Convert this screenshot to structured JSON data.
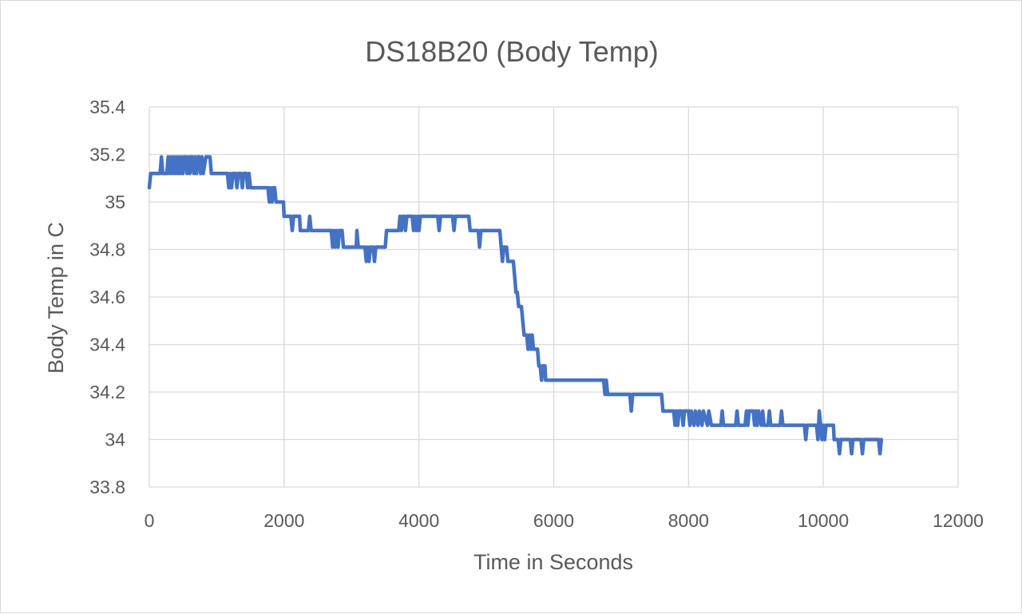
{
  "chart_data": {
    "type": "line",
    "title": "DS18B20 (Body Temp)",
    "xlabel": "Time in Seconds",
    "ylabel": "Body Temp in C",
    "xlim": [
      0,
      12000
    ],
    "ylim": [
      33.8,
      35.4
    ],
    "x_ticks": [
      0,
      2000,
      4000,
      6000,
      8000,
      10000,
      12000
    ],
    "y_ticks": [
      33.8,
      34,
      34.2,
      34.4,
      34.6,
      34.8,
      35,
      35.2,
      35.4
    ],
    "y_tick_labels": [
      "33.8",
      "34",
      "34.2",
      "34.4",
      "34.6",
      "34.8",
      "35",
      "35.2",
      "35.4"
    ],
    "gridlines": "horizontal and vertical",
    "legend": "none",
    "series": [
      {
        "name": "Body Temp",
        "color": "#4472c4",
        "points": [
          [
            0,
            35.06
          ],
          [
            20,
            35.12
          ],
          [
            160,
            35.12
          ],
          [
            180,
            35.19
          ],
          [
            200,
            35.12
          ],
          [
            260,
            35.12
          ],
          [
            280,
            35.19
          ],
          [
            300,
            35.12
          ],
          [
            320,
            35.19
          ],
          [
            340,
            35.12
          ],
          [
            360,
            35.19
          ],
          [
            380,
            35.12
          ],
          [
            400,
            35.19
          ],
          [
            420,
            35.12
          ],
          [
            440,
            35.19
          ],
          [
            460,
            35.12
          ],
          [
            480,
            35.19
          ],
          [
            500,
            35.12
          ],
          [
            520,
            35.19
          ],
          [
            540,
            35.19
          ],
          [
            560,
            35.12
          ],
          [
            580,
            35.19
          ],
          [
            600,
            35.12
          ],
          [
            620,
            35.19
          ],
          [
            640,
            35.19
          ],
          [
            660,
            35.12
          ],
          [
            680,
            35.19
          ],
          [
            700,
            35.12
          ],
          [
            720,
            35.19
          ],
          [
            740,
            35.19
          ],
          [
            760,
            35.12
          ],
          [
            780,
            35.19
          ],
          [
            800,
            35.12
          ],
          [
            840,
            35.19
          ],
          [
            900,
            35.19
          ],
          [
            920,
            35.12
          ],
          [
            1160,
            35.12
          ],
          [
            1180,
            35.06
          ],
          [
            1200,
            35.12
          ],
          [
            1220,
            35.06
          ],
          [
            1240,
            35.12
          ],
          [
            1280,
            35.12
          ],
          [
            1300,
            35.06
          ],
          [
            1320,
            35.12
          ],
          [
            1360,
            35.12
          ],
          [
            1380,
            35.06
          ],
          [
            1400,
            35.12
          ],
          [
            1440,
            35.12
          ],
          [
            1460,
            35.06
          ],
          [
            1480,
            35.12
          ],
          [
            1500,
            35.06
          ],
          [
            1760,
            35.06
          ],
          [
            1780,
            35.0
          ],
          [
            1800,
            35.06
          ],
          [
            1820,
            35.0
          ],
          [
            1840,
            35.06
          ],
          [
            1860,
            35.06
          ],
          [
            1880,
            35.0
          ],
          [
            1990,
            35.0
          ],
          [
            2000,
            34.94
          ],
          [
            2100,
            34.94
          ],
          [
            2120,
            34.88
          ],
          [
            2140,
            34.94
          ],
          [
            2230,
            34.94
          ],
          [
            2240,
            34.88
          ],
          [
            2360,
            34.88
          ],
          [
            2380,
            34.94
          ],
          [
            2400,
            34.88
          ],
          [
            2700,
            34.88
          ],
          [
            2720,
            34.81
          ],
          [
            2740,
            34.88
          ],
          [
            2760,
            34.81
          ],
          [
            2780,
            34.88
          ],
          [
            2800,
            34.81
          ],
          [
            2820,
            34.88
          ],
          [
            2860,
            34.88
          ],
          [
            2880,
            34.81
          ],
          [
            3070,
            34.81
          ],
          [
            3080,
            34.88
          ],
          [
            3100,
            34.81
          ],
          [
            3200,
            34.81
          ],
          [
            3220,
            34.75
          ],
          [
            3240,
            34.81
          ],
          [
            3260,
            34.75
          ],
          [
            3280,
            34.81
          ],
          [
            3320,
            34.81
          ],
          [
            3340,
            34.75
          ],
          [
            3360,
            34.81
          ],
          [
            3500,
            34.81
          ],
          [
            3520,
            34.88
          ],
          [
            3700,
            34.88
          ],
          [
            3720,
            34.94
          ],
          [
            3740,
            34.88
          ],
          [
            3760,
            34.94
          ],
          [
            3780,
            34.94
          ],
          [
            3800,
            34.88
          ],
          [
            3820,
            34.94
          ],
          [
            3900,
            34.94
          ],
          [
            3920,
            34.88
          ],
          [
            3940,
            34.94
          ],
          [
            3960,
            34.88
          ],
          [
            3980,
            34.94
          ],
          [
            4000,
            34.88
          ],
          [
            4020,
            34.94
          ],
          [
            4280,
            34.94
          ],
          [
            4300,
            34.88
          ],
          [
            4320,
            34.94
          ],
          [
            4500,
            34.94
          ],
          [
            4520,
            34.88
          ],
          [
            4540,
            34.94
          ],
          [
            4740,
            34.94
          ],
          [
            4760,
            34.88
          ],
          [
            4880,
            34.88
          ],
          [
            4900,
            34.81
          ],
          [
            4920,
            34.88
          ],
          [
            5200,
            34.88
          ],
          [
            5220,
            34.81
          ],
          [
            5240,
            34.75
          ],
          [
            5260,
            34.81
          ],
          [
            5300,
            34.81
          ],
          [
            5320,
            34.75
          ],
          [
            5400,
            34.75
          ],
          [
            5420,
            34.69
          ],
          [
            5440,
            34.62
          ],
          [
            5460,
            34.62
          ],
          [
            5480,
            34.56
          ],
          [
            5520,
            34.56
          ],
          [
            5540,
            34.5
          ],
          [
            5560,
            34.44
          ],
          [
            5600,
            34.44
          ],
          [
            5620,
            34.38
          ],
          [
            5640,
            34.44
          ],
          [
            5660,
            34.38
          ],
          [
            5680,
            34.44
          ],
          [
            5700,
            34.38
          ],
          [
            5760,
            34.38
          ],
          [
            5780,
            34.31
          ],
          [
            5800,
            34.31
          ],
          [
            5820,
            34.25
          ],
          [
            5840,
            34.31
          ],
          [
            5870,
            34.31
          ],
          [
            5880,
            34.25
          ],
          [
            6740,
            34.25
          ],
          [
            6760,
            34.19
          ],
          [
            6780,
            34.25
          ],
          [
            6800,
            34.19
          ],
          [
            7130,
            34.19
          ],
          [
            7150,
            34.12
          ],
          [
            7170,
            34.19
          ],
          [
            7600,
            34.19
          ],
          [
            7620,
            34.12
          ],
          [
            7780,
            34.12
          ],
          [
            7800,
            34.06
          ],
          [
            7820,
            34.12
          ],
          [
            7840,
            34.06
          ],
          [
            7860,
            34.12
          ],
          [
            7900,
            34.12
          ],
          [
            7920,
            34.06
          ],
          [
            7940,
            34.12
          ],
          [
            8000,
            34.12
          ],
          [
            8020,
            34.06
          ],
          [
            8040,
            34.12
          ],
          [
            8080,
            34.06
          ],
          [
            8100,
            34.12
          ],
          [
            8140,
            34.06
          ],
          [
            8160,
            34.12
          ],
          [
            8200,
            34.06
          ],
          [
            8220,
            34.12
          ],
          [
            8280,
            34.06
          ],
          [
            8300,
            34.12
          ],
          [
            8340,
            34.06
          ],
          [
            8480,
            34.06
          ],
          [
            8500,
            34.12
          ],
          [
            8520,
            34.06
          ],
          [
            8700,
            34.06
          ],
          [
            8720,
            34.12
          ],
          [
            8740,
            34.06
          ],
          [
            8840,
            34.06
          ],
          [
            8860,
            34.12
          ],
          [
            8880,
            34.06
          ],
          [
            8900,
            34.12
          ],
          [
            8960,
            34.12
          ],
          [
            8980,
            34.06
          ],
          [
            9000,
            34.12
          ],
          [
            9020,
            34.06
          ],
          [
            9040,
            34.12
          ],
          [
            9080,
            34.06
          ],
          [
            9100,
            34.12
          ],
          [
            9120,
            34.06
          ],
          [
            9180,
            34.06
          ],
          [
            9200,
            34.12
          ],
          [
            9220,
            34.06
          ],
          [
            9360,
            34.06
          ],
          [
            9380,
            34.12
          ],
          [
            9400,
            34.06
          ],
          [
            9720,
            34.06
          ],
          [
            9740,
            34.0
          ],
          [
            9760,
            34.06
          ],
          [
            9900,
            34.06
          ],
          [
            9920,
            34.0
          ],
          [
            9940,
            34.12
          ],
          [
            9960,
            34.06
          ],
          [
            9980,
            34.0
          ],
          [
            10000,
            34.06
          ],
          [
            10020,
            34.0
          ],
          [
            10040,
            34.06
          ],
          [
            10150,
            34.06
          ],
          [
            10160,
            34.0
          ],
          [
            10200,
            34.0
          ],
          [
            10220,
            34.0
          ],
          [
            10240,
            33.94
          ],
          [
            10260,
            34.0
          ],
          [
            10400,
            34.0
          ],
          [
            10420,
            33.94
          ],
          [
            10440,
            34.0
          ],
          [
            10560,
            34.0
          ],
          [
            10580,
            33.94
          ],
          [
            10600,
            34.0
          ],
          [
            10820,
            34.0
          ],
          [
            10840,
            33.94
          ],
          [
            10860,
            34.0
          ]
        ]
      }
    ]
  }
}
